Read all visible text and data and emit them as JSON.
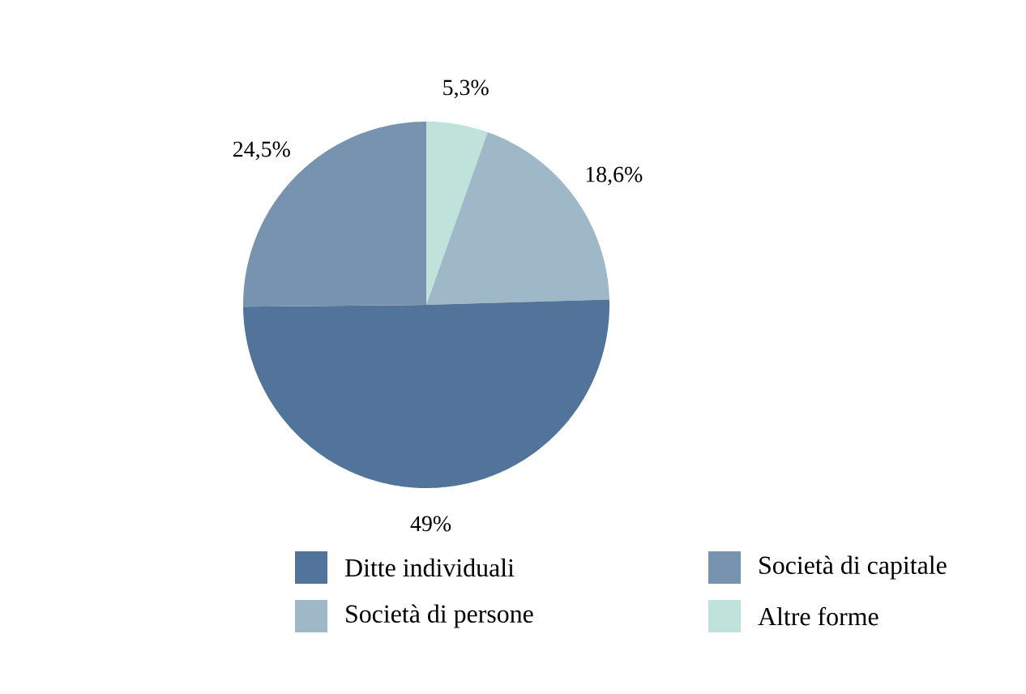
{
  "chart_data": {
    "type": "pie",
    "categories": [
      "Ditte individuali",
      "Società di capitale",
      "Società di persone",
      "Altre forme"
    ],
    "values": [
      49,
      24.5,
      18.6,
      5.3
    ],
    "value_labels": [
      "49%",
      "24,5%",
      "18,6%",
      "5,3%"
    ],
    "colors": [
      "#52739a",
      "#7793b0",
      "#9fb8c8",
      "#bfe3da"
    ],
    "legend": "bottom"
  }
}
